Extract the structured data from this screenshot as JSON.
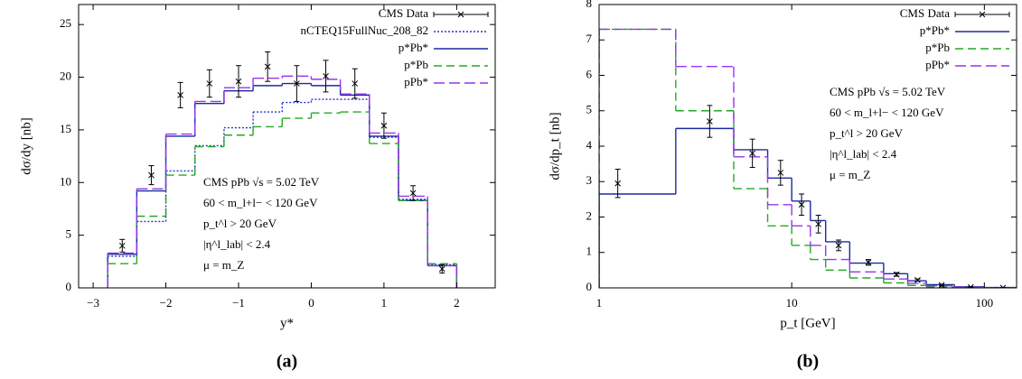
{
  "chart_data": [
    {
      "type": "histogram",
      "caption": "(a)",
      "xlabel": "y*",
      "ylabel": "dσ/dy [nb]",
      "xlim": [
        -3.2,
        2.53
      ],
      "ylim": [
        0,
        26.9
      ],
      "xticks": [
        {
          "value": -3,
          "label": "−3"
        },
        {
          "value": -2,
          "label": "−2"
        },
        {
          "value": -1,
          "label": "−1"
        },
        0,
        1,
        2
      ],
      "yticks": [
        0,
        5,
        10,
        15,
        20,
        25
      ],
      "legend": "top-right",
      "bins": [
        -2.8,
        -2.4,
        -2.0,
        -1.6,
        -1.2,
        -0.8,
        -0.4,
        0,
        0.4,
        0.8,
        1.2,
        1.6,
        2.0
      ],
      "data": {
        "name": "CMS Data",
        "color": "#000000",
        "x": [
          -2.6,
          -2.2,
          -1.8,
          -1.4,
          -1.0,
          -0.6,
          -0.2,
          0.2,
          0.6,
          1.0,
          1.4,
          1.8
        ],
        "values": [
          4.0,
          10.7,
          18.3,
          19.4,
          19.6,
          21.0,
          19.4,
          20.1,
          19.4,
          15.4,
          9.0,
          1.8
        ],
        "errors": [
          0.6,
          0.9,
          1.2,
          1.3,
          1.5,
          1.4,
          1.7,
          1.5,
          1.4,
          1.2,
          0.7,
          0.4
        ]
      },
      "series": [
        {
          "name": "nCTEQ15FullNuc_208_82",
          "color": "#2233cc",
          "dash": "2,2",
          "values": [
            3.0,
            6.3,
            11.1,
            13.5,
            15.2,
            16.7,
            17.6,
            17.9,
            17.9,
            14.3,
            8.4,
            2.2
          ]
        },
        {
          "name": "p*Pb*",
          "color": "#1a2aa0",
          "dash": "none",
          "values": [
            3.2,
            9.2,
            14.4,
            17.5,
            18.7,
            19.2,
            19.4,
            19.2,
            18.3,
            14.4,
            8.3,
            2.1
          ]
        },
        {
          "name": "p*Pb",
          "color": "#22aa22",
          "dash": "9,5",
          "values": [
            2.3,
            6.8,
            10.7,
            13.4,
            14.5,
            15.3,
            16.1,
            16.6,
            16.7,
            13.7,
            8.3,
            2.3
          ]
        },
        {
          "name": "pPb*",
          "color": "#9933ee",
          "dash": "12,5",
          "values": [
            3.3,
            9.4,
            14.6,
            17.7,
            19.0,
            19.9,
            20.1,
            19.8,
            18.4,
            14.7,
            8.7,
            2.1
          ]
        }
      ],
      "annotations": [
        "CMS pPb √s = 5.02 TeV",
        "60 < m_l+l− < 120 GeV",
        "p_t^l > 20 GeV",
        "|η^l_lab| < 2.4",
        "μ = m_Z"
      ]
    },
    {
      "type": "histogram",
      "caption": "(b)",
      "xlabel": "p_t [GeV]",
      "ylabel": "dσ/dp_t [nb]",
      "xscale": "log",
      "xlim": [
        1,
        147
      ],
      "ylim": [
        0,
        8
      ],
      "xticks": [
        1,
        10,
        100
      ],
      "yticks": [
        0,
        1,
        2,
        3,
        4,
        5,
        6,
        7,
        8
      ],
      "legend": "top-right",
      "bins": [
        1,
        2.5,
        5,
        7.5,
        10,
        12.5,
        15,
        20,
        30,
        40,
        50,
        70,
        100,
        150
      ],
      "data": {
        "name": "CMS Data",
        "color": "#000000",
        "x": [
          1.25,
          3.75,
          6.25,
          8.75,
          11.25,
          13.75,
          17.5,
          25,
          35,
          45,
          60,
          85,
          125
        ],
        "values": [
          2.95,
          4.7,
          3.8,
          3.25,
          2.35,
          1.8,
          1.2,
          0.72,
          0.38,
          0.22,
          0.08,
          0.02,
          0.005
        ],
        "errors": [
          0.4,
          0.45,
          0.4,
          0.35,
          0.3,
          0.25,
          0.15,
          0.08,
          0.05,
          0.03,
          0.02,
          0.01,
          0.005
        ]
      },
      "series": [
        {
          "name": "p*Pb*",
          "color": "#1a2aa0",
          "dash": "none",
          "values": [
            2.65,
            4.5,
            3.9,
            3.1,
            2.45,
            1.9,
            1.3,
            0.7,
            0.4,
            0.2,
            0.09,
            0.03,
            0.01
          ]
        },
        {
          "name": "p*Pb",
          "color": "#22aa22",
          "dash": "9,5",
          "values": [
            7.3,
            5.0,
            2.8,
            1.75,
            1.2,
            0.8,
            0.5,
            0.28,
            0.14,
            0.07,
            0.03,
            0.01,
            0.004
          ]
        },
        {
          "name": "pPb*",
          "color": "#9933ee",
          "dash": "12,5",
          "values": [
            7.3,
            6.25,
            3.7,
            2.35,
            1.75,
            1.2,
            0.8,
            0.45,
            0.25,
            0.13,
            0.06,
            0.02,
            0.006
          ]
        }
      ],
      "annotations": [
        "CMS pPb √s = 5.02 TeV",
        "60 < m_l+l− < 120 GeV",
        "p_t^l > 20 GeV",
        "|η^l_lab| < 2.4",
        "μ = m_Z"
      ]
    }
  ]
}
